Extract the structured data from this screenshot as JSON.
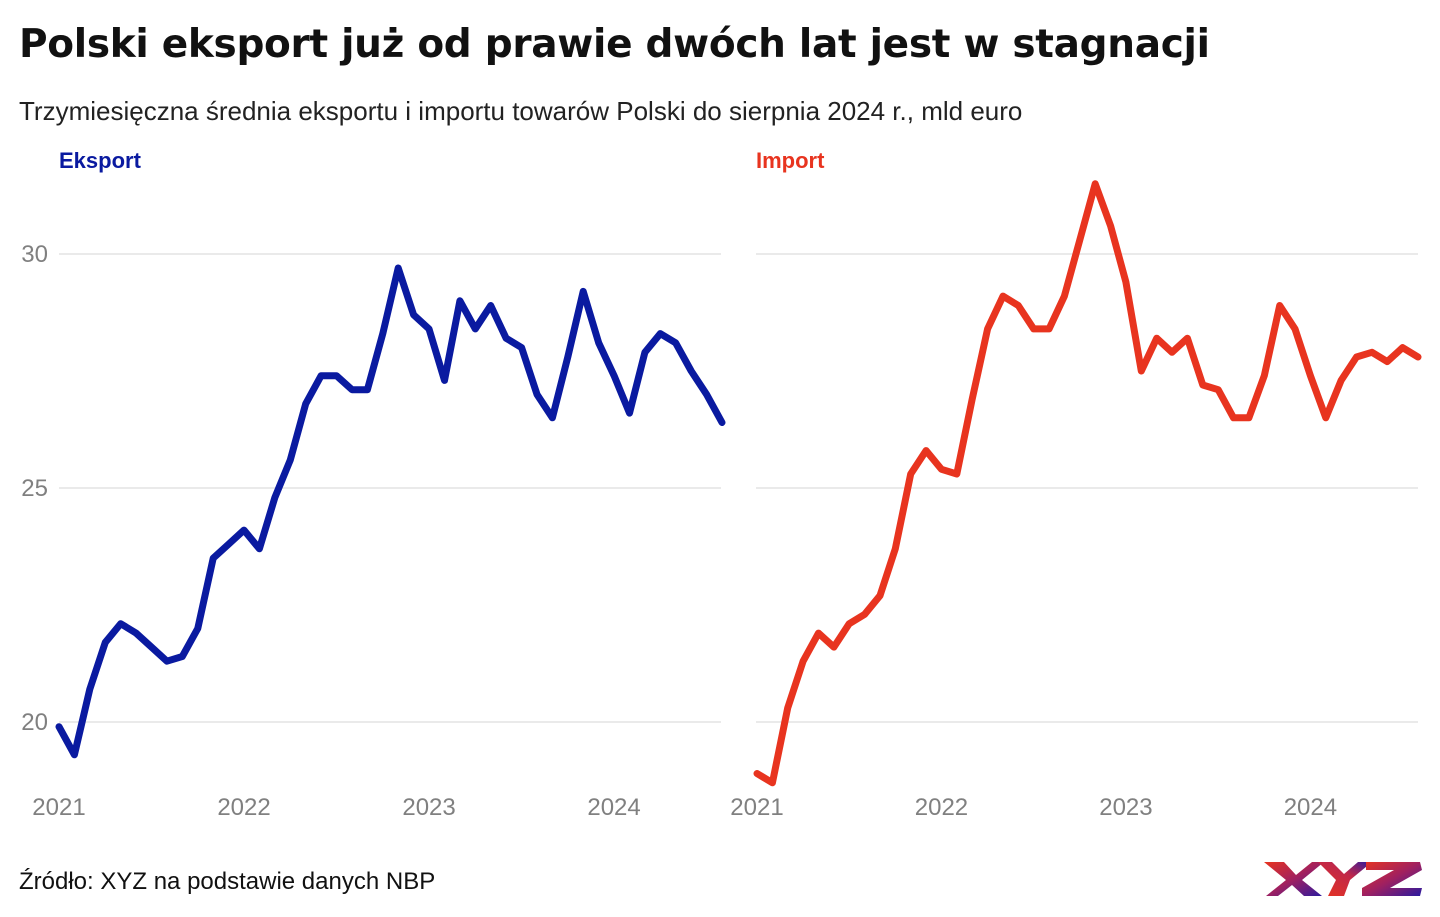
{
  "header": {
    "title": "Polski eksport już od prawie dwóch lat jest w stagnacji",
    "subtitle": "Trzymiesięczna średnia eksportu i importu towarów Polski do sierpnia 2024 r., mld euro"
  },
  "footer": {
    "source": "Źródło: XYZ na podstawie danych NBP",
    "logo_text": "XYZ"
  },
  "colors": {
    "export": "#0a1aa0",
    "import": "#e8341f",
    "grid": "#e3e3e3",
    "tick": "#808080"
  },
  "chart_data": [
    {
      "type": "line",
      "title": "Eksport",
      "xlabel": "",
      "ylabel": "mld euro",
      "x_start": "2021-01",
      "x_end": "2024-08",
      "x_ticks": [
        "2021",
        "2022",
        "2023",
        "2024"
      ],
      "y_ticks": [
        20,
        25,
        30
      ],
      "ylim": [
        18.5,
        31.9
      ],
      "grid": true,
      "series": [
        {
          "name": "Eksport",
          "color": "#0a1aa0",
          "values": [
            19.9,
            19.3,
            20.7,
            21.7,
            22.1,
            21.9,
            21.6,
            21.3,
            21.4,
            22.0,
            23.5,
            23.8,
            24.1,
            23.7,
            24.8,
            25.6,
            26.8,
            27.4,
            27.4,
            27.1,
            27.1,
            28.3,
            29.7,
            28.7,
            28.4,
            27.3,
            29.0,
            28.4,
            28.9,
            28.2,
            28.0,
            27.0,
            26.5,
            27.8,
            29.2,
            28.1,
            27.4,
            26.6,
            27.9,
            28.3,
            28.1,
            27.5,
            27.0,
            26.4
          ]
        }
      ]
    },
    {
      "type": "line",
      "title": "Import",
      "xlabel": "",
      "ylabel": "mld euro",
      "x_start": "2021-01",
      "x_end": "2024-08",
      "x_ticks": [
        "2021",
        "2022",
        "2023",
        "2024"
      ],
      "y_ticks": [
        20,
        25,
        30
      ],
      "ylim": [
        18.5,
        31.9
      ],
      "grid": true,
      "series": [
        {
          "name": "Import",
          "color": "#e8341f",
          "values": [
            18.9,
            18.7,
            20.3,
            21.3,
            21.9,
            21.6,
            22.1,
            22.3,
            22.7,
            23.7,
            25.3,
            25.8,
            25.4,
            25.3,
            26.9,
            28.4,
            29.1,
            28.9,
            28.4,
            28.4,
            29.1,
            30.3,
            31.5,
            30.6,
            29.4,
            27.5,
            28.2,
            27.9,
            28.2,
            27.2,
            27.1,
            26.5,
            26.5,
            27.4,
            28.9,
            28.4,
            27.4,
            26.5,
            27.3,
            27.8,
            27.9,
            27.7,
            28.0,
            27.8
          ]
        }
      ]
    }
  ]
}
